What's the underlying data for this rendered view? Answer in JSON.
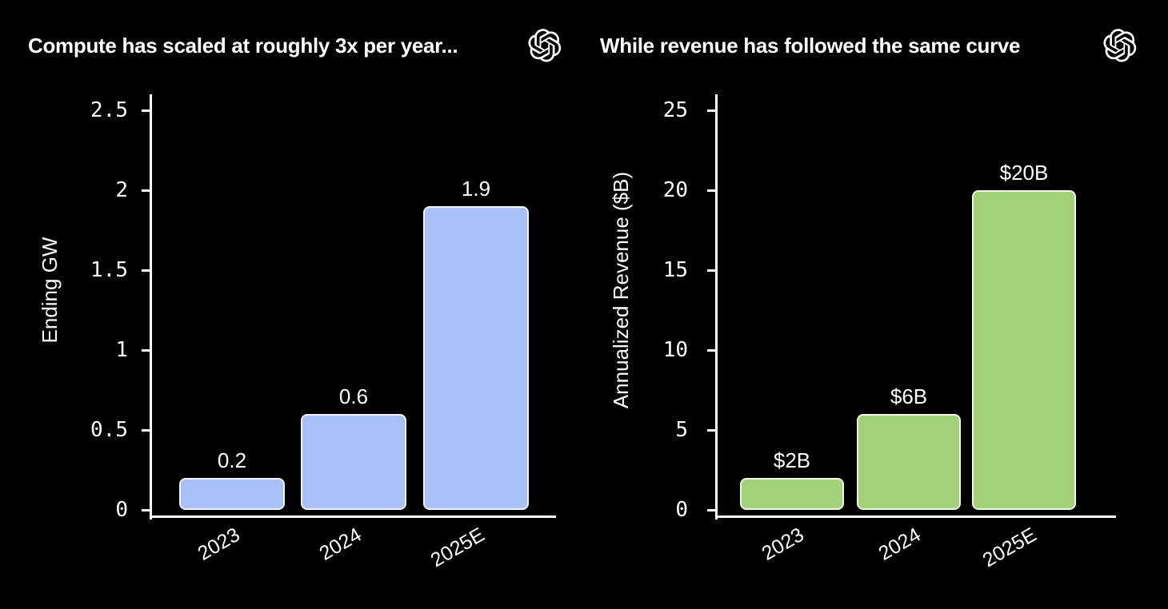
{
  "page": {
    "background_color": "#000000",
    "text_color": "#ffffff"
  },
  "chart_data": [
    {
      "type": "bar",
      "title": "Compute has scaled at roughly 3x per year...",
      "xlabel": "",
      "ylabel": "Ending GW",
      "categories": [
        "2023",
        "2024",
        "2025E"
      ],
      "values": [
        0.2,
        0.6,
        1.9
      ],
      "value_labels": [
        "0.2",
        "0.6",
        "1.9"
      ],
      "ylim": [
        0,
        2.5
      ],
      "yticks": [
        0,
        0.5,
        1,
        1.5,
        2,
        2.5
      ],
      "ytick_labels": [
        "0",
        "0.5",
        "1",
        "1.5",
        "2",
        "2.5"
      ],
      "bar_color": "#a8c0f6",
      "grid": false,
      "legend": "none",
      "logo": "openai-logo"
    },
    {
      "type": "bar",
      "title": "While revenue has followed the same curve",
      "xlabel": "",
      "ylabel": "Annualized Revenue ($B)",
      "categories": [
        "2023",
        "2024",
        "2025E"
      ],
      "values": [
        2,
        6,
        20
      ],
      "value_labels": [
        "$2B",
        "$6B",
        "$20B"
      ],
      "ylim": [
        0,
        25
      ],
      "yticks": [
        0,
        5,
        10,
        15,
        20,
        25
      ],
      "ytick_labels": [
        "0",
        "5",
        "10",
        "15",
        "20",
        "25"
      ],
      "bar_color": "#a3d17a",
      "grid": false,
      "legend": "none",
      "logo": "openai-logo"
    }
  ]
}
